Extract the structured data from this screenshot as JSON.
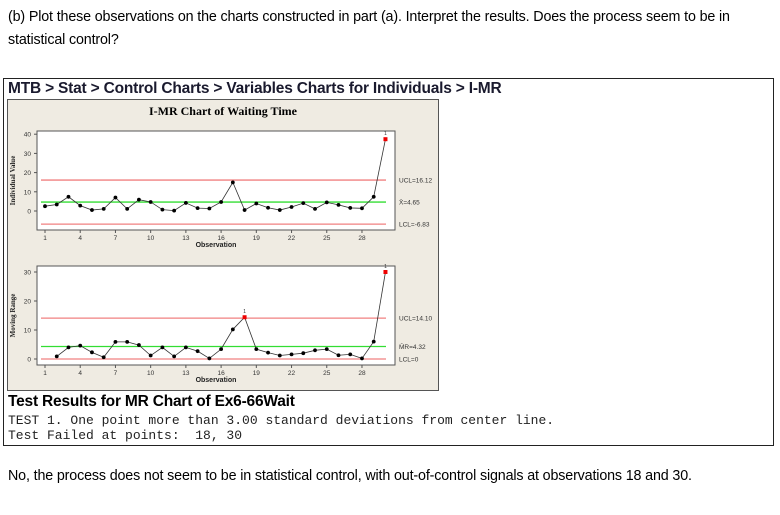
{
  "question": {
    "text": "(b) Plot these observations on the charts constructed in part (a). Interpret the results. Does the process seem to be in statistical control?"
  },
  "menu_path": "MTB > Stat > Control Charts > Variables Charts for Individuals > I-MR",
  "panel_title": "I-MR Chart of Waiting Time",
  "test_results": {
    "title": "Test Results for MR Chart of Ex6-66Wait",
    "line1": "TEST 1. One point more than 3.00 standard deviations from center line.",
    "line2": "Test Failed at points:  18, 30"
  },
  "answer": "No, the process does not seem to be in statistical control, with out-of-control signals at observations 18 and 30.",
  "colors": {
    "control_limit": "#f08080",
    "center_line": "#33dd33",
    "point": "#000000",
    "out_of_control_point": "#ee0000",
    "panel_bg": "#efebe2"
  },
  "chart_data": [
    {
      "type": "line",
      "title": "I-MR Chart of Waiting Time — Individuals",
      "xlabel": "Observation",
      "ylabel": "Individual Value",
      "x": [
        1,
        2,
        3,
        4,
        5,
        6,
        7,
        8,
        9,
        10,
        11,
        12,
        13,
        14,
        15,
        16,
        17,
        18,
        19,
        20,
        21,
        22,
        23,
        24,
        25,
        26,
        27,
        28,
        29,
        30
      ],
      "values": [
        2.5,
        3.4,
        7.4,
        2.8,
        0.5,
        1.1,
        7.0,
        1.1,
        5.9,
        4.7,
        0.7,
        0.2,
        4.2,
        1.5,
        1.3,
        4.7,
        14.9,
        0.5,
        3.9,
        1.7,
        0.5,
        2.1,
        4.1,
        1.1,
        4.5,
        3.2,
        1.6,
        1.4,
        7.4,
        37.4
      ],
      "x_ticks": [
        1,
        4,
        7,
        10,
        13,
        16,
        19,
        22,
        25,
        28
      ],
      "y_ticks": [
        0,
        10,
        20,
        30,
        40
      ],
      "ylim": [
        -12,
        42
      ],
      "ucl": 16.12,
      "center": 4.65,
      "lcl": -6.83,
      "labels": {
        "ucl": "UCL=16.12",
        "center": "X̄=4.65",
        "lcl": "LCL=-6.83"
      },
      "out_of_control": [
        30
      ],
      "grid": false
    },
    {
      "type": "line",
      "title": "I-MR Chart of Waiting Time — Moving Range",
      "xlabel": "Observation",
      "ylabel": "Moving Range",
      "x": [
        2,
        3,
        4,
        5,
        6,
        7,
        8,
        9,
        10,
        11,
        12,
        13,
        14,
        15,
        16,
        17,
        18,
        19,
        20,
        21,
        22,
        23,
        24,
        25,
        26,
        27,
        28,
        29,
        30
      ],
      "values": [
        0.9,
        4.0,
        4.6,
        2.3,
        0.6,
        5.9,
        5.9,
        4.8,
        1.2,
        4.0,
        0.9,
        4.0,
        2.7,
        0.2,
        3.4,
        10.2,
        14.4,
        3.4,
        2.2,
        1.2,
        1.6,
        2.0,
        3.0,
        3.4,
        1.3,
        1.6,
        0.2,
        6.0,
        30.0
      ],
      "x_ticks": [
        1,
        4,
        7,
        10,
        13,
        16,
        19,
        22,
        25,
        28
      ],
      "y_ticks": [
        0,
        10,
        20,
        30
      ],
      "ylim": [
        -1.5,
        31.5
      ],
      "ucl": 14.1,
      "center": 4.32,
      "lcl": 0,
      "labels": {
        "ucl": "UCL=14.10",
        "center": "M̄R=4.32",
        "lcl": "LCL=0"
      },
      "out_of_control": [
        18,
        30
      ],
      "grid": false
    }
  ]
}
